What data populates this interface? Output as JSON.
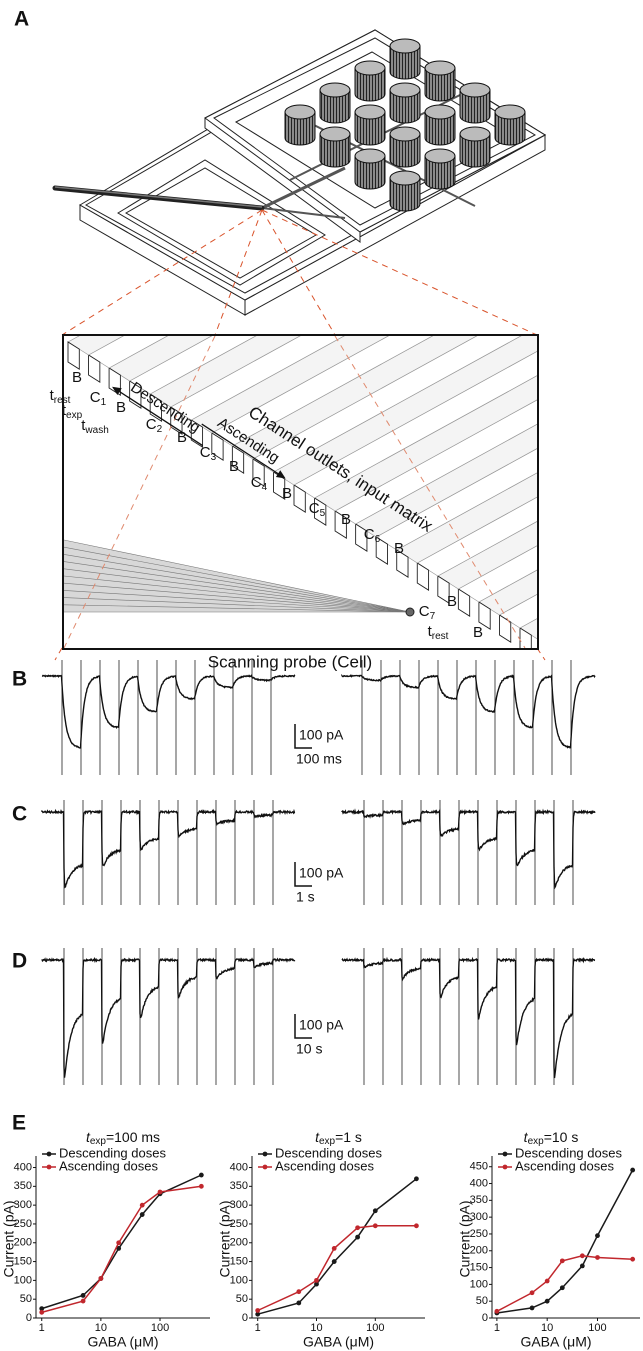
{
  "panel_labels": {
    "a": "A",
    "b": "B",
    "c": "C",
    "d": "D",
    "e": "E"
  },
  "panel_a": {
    "outlets": [
      {
        "base": "t",
        "sub": "rest"
      },
      {
        "base": "B"
      },
      {
        "base": "C",
        "sub": "1"
      },
      {
        "base": "t",
        "sub": "exp"
      },
      {
        "base": "B"
      },
      {
        "base": "t",
        "sub": "wash"
      },
      {
        "base": "C",
        "sub": "2"
      },
      {
        "base": "B"
      },
      {
        "base": "C",
        "sub": "3"
      },
      {
        "base": "B"
      },
      {
        "base": "C",
        "sub": "4"
      },
      {
        "base": "B"
      },
      {
        "base": "C",
        "sub": "5"
      },
      {
        "base": "B"
      },
      {
        "base": "C",
        "sub": "6"
      },
      {
        "base": "B"
      },
      {
        "base": "C",
        "sub": "7"
      },
      {
        "base": "B"
      },
      {
        "base": "t",
        "sub": "rest"
      },
      {
        "base": "B"
      }
    ],
    "caption": "Channel outlets, input matrix",
    "descending": "Descending",
    "ascending": "Ascending",
    "probe": "Scanning probe (Cell)"
  },
  "scale_bars": [
    {
      "current": "100 pA",
      "time": "100 ms"
    },
    {
      "current": "100 pA",
      "time": "1 s"
    },
    {
      "current": "100 pA",
      "time": "10 s"
    }
  ],
  "chart_data": [
    {
      "type": "line",
      "title": {
        "base": "t",
        "sub": "exp",
        "text": "=100 ms"
      },
      "x": [
        1,
        5,
        10,
        20,
        50,
        100,
        500
      ],
      "xscale": "log",
      "xlim": [
        0.8,
        700
      ],
      "xticks": [
        1,
        10,
        100
      ],
      "ylim": [
        0,
        420
      ],
      "yticks": [
        0,
        50,
        100,
        150,
        200,
        250,
        300,
        350,
        400
      ],
      "xlabel": "GABA (μM)",
      "ylabel": "Current (pA)",
      "legend": "upper left",
      "series": [
        {
          "name": "Descending doses",
          "color": "#1a1a1a",
          "values": [
            25,
            60,
            105,
            185,
            275,
            330,
            380
          ]
        },
        {
          "name": "Ascending doses",
          "color": "#c1272d",
          "values": [
            15,
            45,
            105,
            200,
            300,
            335,
            350
          ]
        }
      ]
    },
    {
      "type": "line",
      "title": {
        "base": "t",
        "sub": "exp",
        "text": "=1 s"
      },
      "x": [
        1,
        5,
        10,
        20,
        50,
        100,
        500
      ],
      "xscale": "log",
      "xlim": [
        0.8,
        700
      ],
      "xticks": [
        1,
        10,
        100
      ],
      "ylim": [
        0,
        420
      ],
      "yticks": [
        0,
        50,
        100,
        150,
        200,
        250,
        300,
        350,
        400
      ],
      "xlabel": "GABA (μM)",
      "ylabel": "Current (pA)",
      "legend": "upper left",
      "series": [
        {
          "name": "Descending doses",
          "color": "#1a1a1a",
          "values": [
            10,
            40,
            90,
            150,
            215,
            285,
            370
          ]
        },
        {
          "name": "Ascending doses",
          "color": "#c1272d",
          "values": [
            20,
            70,
            100,
            185,
            240,
            245,
            245
          ]
        }
      ]
    },
    {
      "type": "line",
      "title": {
        "base": "t",
        "sub": "exp",
        "text": "=10 s"
      },
      "x": [
        1,
        5,
        10,
        20,
        50,
        100,
        500
      ],
      "xscale": "log",
      "xlim": [
        0.8,
        700
      ],
      "xticks": [
        1,
        10,
        100
      ],
      "ylim": [
        0,
        470
      ],
      "yticks": [
        0,
        50,
        100,
        150,
        200,
        250,
        300,
        350,
        400,
        450
      ],
      "xlabel": "GABA (μM)",
      "ylabel": "Current (pA)",
      "legend": "upper left",
      "series": [
        {
          "name": "Descending doses",
          "color": "#1a1a1a",
          "values": [
            15,
            30,
            50,
            90,
            155,
            245,
            440
          ]
        },
        {
          "name": "Ascending doses",
          "color": "#c1272d",
          "values": [
            20,
            75,
            110,
            170,
            185,
            180,
            175
          ]
        }
      ]
    }
  ]
}
